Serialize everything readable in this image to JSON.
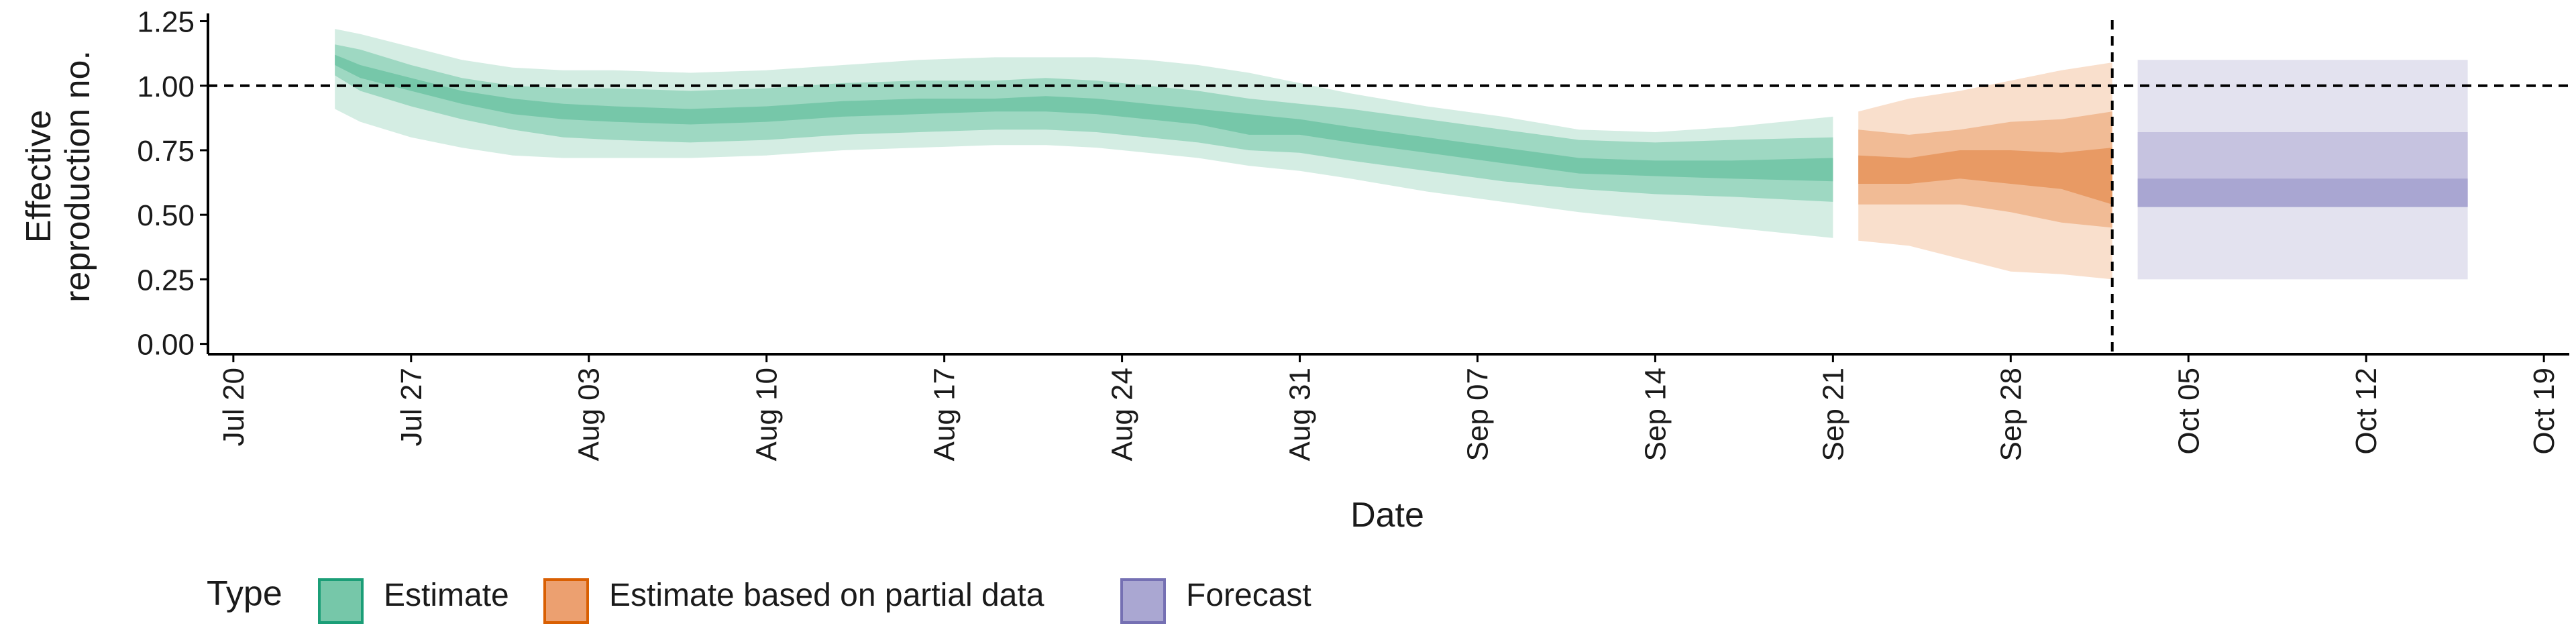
{
  "chart_data": {
    "type": "area",
    "title": "",
    "xlabel": "Date",
    "ylabel": "Effective\nreproduction no.",
    "ylim": [
      -0.04,
      1.28
    ],
    "xlim": [
      "2020-07-19",
      "2020-10-20"
    ],
    "yticks": [
      0,
      0.25,
      0.5,
      0.75,
      1.0,
      1.25
    ],
    "ytick_labels": [
      "0.00",
      "0.25",
      "0.50",
      "0.75",
      "1.00",
      "1.25"
    ],
    "xticks": [
      "2020-07-20",
      "2020-07-27",
      "2020-08-03",
      "2020-08-10",
      "2020-08-17",
      "2020-08-24",
      "2020-08-31",
      "2020-09-07",
      "2020-09-14",
      "2020-09-21",
      "2020-09-28",
      "2020-10-05",
      "2020-10-12",
      "2020-10-19"
    ],
    "xtick_labels": [
      "Jul 20",
      "Jul 27",
      "Aug 03",
      "Aug 10",
      "Aug 17",
      "Aug 24",
      "Aug 31",
      "Sep 07",
      "Sep 14",
      "Sep 21",
      "Sep 28",
      "Oct 05",
      "Oct 12",
      "Oct 19"
    ],
    "reference_line": {
      "y": 1.0,
      "style": "dashed"
    },
    "forecast_date_line": {
      "x": "2020-10-02",
      "style": "dashed"
    },
    "grid": false,
    "legend": {
      "title": "Type",
      "placement": "bottom-left",
      "items": [
        {
          "label": "Estimate",
          "color": "#76c7a9",
          "border": "#1b9e77"
        },
        {
          "label": "Estimate based on partial data",
          "color": "#eca070",
          "border": "#d95f02"
        },
        {
          "label": "Forecast",
          "color": "#aaa7d2",
          "border": "#7570b3"
        }
      ]
    },
    "series": [
      {
        "name": "Estimate",
        "colors": {
          "outer": "#d4ede3",
          "mid": "#9ed8c2",
          "inner": "#76c7a9"
        },
        "x": [
          "2020-07-24",
          "2020-07-25",
          "2020-07-27",
          "2020-07-29",
          "2020-07-31",
          "2020-08-02",
          "2020-08-04",
          "2020-08-07",
          "2020-08-10",
          "2020-08-13",
          "2020-08-16",
          "2020-08-19",
          "2020-08-21",
          "2020-08-23",
          "2020-08-25",
          "2020-08-27",
          "2020-08-29",
          "2020-08-31",
          "2020-09-02",
          "2020-09-05",
          "2020-09-08",
          "2020-09-11",
          "2020-09-14",
          "2020-09-17",
          "2020-09-21"
        ],
        "median": [
          1.1,
          1.06,
          1.01,
          0.96,
          0.92,
          0.9,
          0.89,
          0.88,
          0.89,
          0.91,
          0.92,
          0.92,
          0.93,
          0.92,
          0.9,
          0.88,
          0.85,
          0.84,
          0.81,
          0.77,
          0.73,
          0.69,
          0.68,
          0.68,
          0.68
        ],
        "lower_50": [
          1.08,
          1.03,
          0.98,
          0.93,
          0.89,
          0.87,
          0.86,
          0.85,
          0.86,
          0.88,
          0.89,
          0.9,
          0.9,
          0.89,
          0.87,
          0.85,
          0.81,
          0.81,
          0.78,
          0.74,
          0.7,
          0.66,
          0.65,
          0.64,
          0.63
        ],
        "upper_50": [
          1.12,
          1.08,
          1.03,
          0.98,
          0.95,
          0.93,
          0.92,
          0.91,
          0.92,
          0.94,
          0.95,
          0.95,
          0.96,
          0.95,
          0.93,
          0.91,
          0.89,
          0.87,
          0.84,
          0.8,
          0.76,
          0.72,
          0.71,
          0.71,
          0.72
        ],
        "lower_90": [
          1.04,
          0.98,
          0.92,
          0.87,
          0.83,
          0.8,
          0.79,
          0.78,
          0.79,
          0.81,
          0.82,
          0.83,
          0.83,
          0.82,
          0.8,
          0.78,
          0.75,
          0.74,
          0.71,
          0.67,
          0.63,
          0.6,
          0.58,
          0.57,
          0.55
        ],
        "upper_90": [
          1.16,
          1.14,
          1.08,
          1.03,
          1.0,
          0.99,
          0.99,
          0.98,
          0.99,
          1.01,
          1.02,
          1.02,
          1.03,
          1.02,
          1.0,
          0.98,
          0.95,
          0.93,
          0.91,
          0.87,
          0.83,
          0.79,
          0.78,
          0.79,
          0.8
        ],
        "lower_outer": [
          0.91,
          0.86,
          0.8,
          0.76,
          0.73,
          0.72,
          0.72,
          0.72,
          0.73,
          0.75,
          0.76,
          0.77,
          0.77,
          0.76,
          0.74,
          0.72,
          0.69,
          0.67,
          0.64,
          0.59,
          0.55,
          0.51,
          0.48,
          0.45,
          0.41
        ],
        "upper_outer": [
          1.22,
          1.2,
          1.15,
          1.1,
          1.07,
          1.06,
          1.06,
          1.05,
          1.06,
          1.08,
          1.1,
          1.11,
          1.11,
          1.11,
          1.1,
          1.08,
          1.05,
          1.01,
          0.97,
          0.92,
          0.88,
          0.83,
          0.82,
          0.84,
          0.88
        ]
      },
      {
        "name": "Estimate based on partial data",
        "colors": {
          "outer": "#f9dfcc",
          "mid": "#f1bb95",
          "inner": "#e89a64"
        },
        "x": [
          "2020-09-22",
          "2020-09-24",
          "2020-09-26",
          "2020-09-28",
          "2020-09-30",
          "2020-10-02"
        ],
        "median": [
          0.67,
          0.66,
          0.69,
          0.68,
          0.68,
          0.6
        ],
        "lower_50": [
          0.62,
          0.62,
          0.64,
          0.62,
          0.6,
          0.54
        ],
        "upper_50": [
          0.73,
          0.72,
          0.75,
          0.75,
          0.74,
          0.76
        ],
        "lower_90": [
          0.54,
          0.54,
          0.54,
          0.51,
          0.47,
          0.45
        ],
        "upper_90": [
          0.83,
          0.81,
          0.83,
          0.86,
          0.87,
          0.9
        ],
        "lower_outer": [
          0.4,
          0.38,
          0.33,
          0.28,
          0.27,
          0.25
        ],
        "upper_outer": [
          0.9,
          0.95,
          0.98,
          1.02,
          1.06,
          1.09
        ]
      },
      {
        "name": "Forecast",
        "colors": {
          "outer": "#e3e2ef",
          "mid": "#c6c3e0",
          "inner": "#a9a6d2"
        },
        "x": [
          "2020-10-03",
          "2020-10-16"
        ],
        "median": [
          0.58,
          0.58
        ],
        "lower_50": [
          0.53,
          0.53
        ],
        "upper_50": [
          0.64,
          0.64
        ],
        "lower_90": [
          0.53,
          0.53
        ],
        "upper_90": [
          0.82,
          0.82
        ],
        "lower_outer": [
          0.25,
          0.25
        ],
        "upper_outer": [
          1.1,
          1.1
        ]
      }
    ]
  }
}
